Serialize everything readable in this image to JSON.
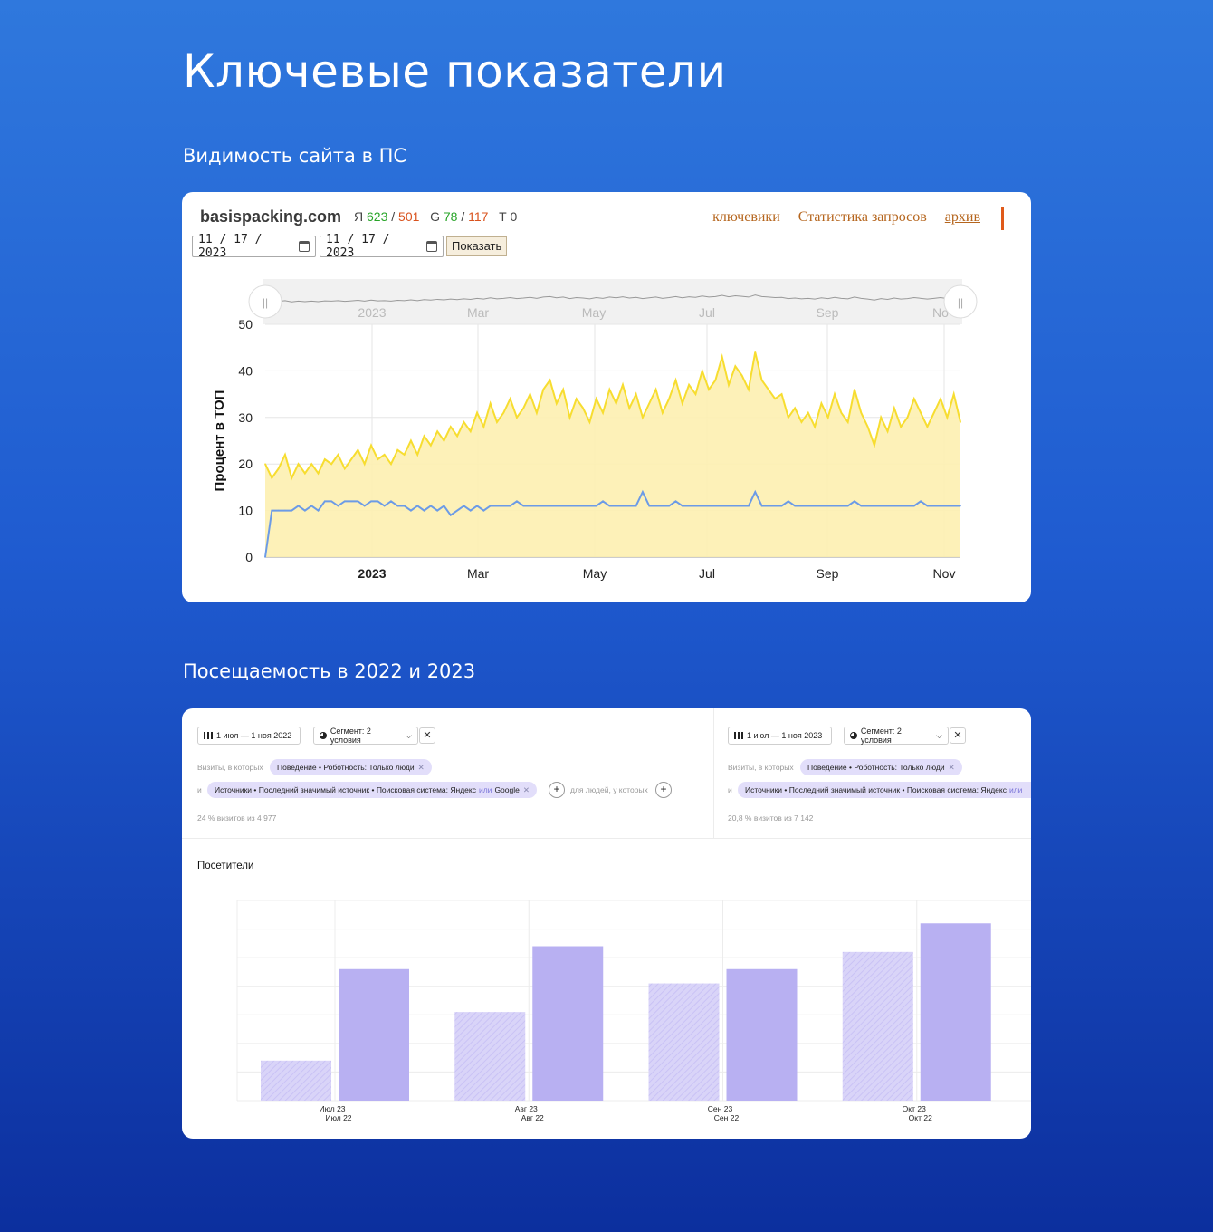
{
  "page": {
    "title": "Ключевые показатели",
    "section1_title": "Видимость сайта в ПС",
    "section2_title": "Посещаемость в 2022 и 2023"
  },
  "visibility": {
    "domain": "basispacking.com",
    "yandex_label": "Я",
    "yandex_green": "623",
    "yandex_red": "501",
    "google_label": "G",
    "google_green": "78",
    "google_red": "117",
    "t_label": "Т 0",
    "links": [
      "ключевики",
      "Статистика запросов",
      "архив"
    ],
    "date_from": "11 / 17 / 2023",
    "date_to": "11 / 17 / 2023",
    "show_button": "Показать",
    "navigator_labels": [
      "2023",
      "Mar",
      "May",
      "Jul",
      "Sep",
      "No"
    ],
    "colors": {
      "yandex": "#f7dd30",
      "yandex_fill": "#fdf0b0",
      "google": "#6c9be6",
      "link": "#b5651d"
    }
  },
  "traffic": {
    "left": {
      "date_range": "1 июл — 1 ноя 2022",
      "segment": "Сегмент: 2 условия",
      "visits_prefix": "Визиты, в которых",
      "behavior_tag": "Поведение • Роботность: Только люди",
      "and_label": "и",
      "source_tag_main": "Источники • Последний значимый источник • Поисковая система: Яндекс",
      "source_tag_or": "или",
      "source_tag_tail": "Google",
      "for_people": "для людей, у которых",
      "share": "24 % визитов из 4 977"
    },
    "right": {
      "date_range": "1 июл — 1 ноя 2023",
      "segment": "Сегмент: 2 условия",
      "visits_prefix": "Визиты, в которых",
      "behavior_tag": "Поведение • Роботность: Только люди",
      "and_label": "и",
      "source_tag_main": "Источники • Последний значимый источник • Поисковая система: Яндекс",
      "source_tag_or": "или",
      "share": "20,8 % визитов из 7 142"
    },
    "visitors_label": "Посетители",
    "colors": {
      "bar": "#b8b0f2",
      "hatch": "#c9c2f5"
    }
  },
  "chart_data": [
    {
      "type": "area",
      "ylabel": "Процент в ТОП",
      "ylim": [
        0,
        50
      ],
      "yticks": [
        0,
        10,
        20,
        30,
        40,
        50
      ],
      "xticks": [
        "2023",
        "Mar",
        "May",
        "Jul",
        "Sep",
        "Nov"
      ],
      "grid": true,
      "series": [
        {
          "values": [
            20,
            17,
            19,
            22,
            17,
            20,
            18,
            20,
            18,
            21,
            20,
            22,
            19,
            21,
            23,
            20,
            24,
            21,
            22,
            20,
            23,
            22,
            25,
            22,
            26,
            24,
            27,
            25,
            28,
            26,
            29,
            27,
            31,
            28,
            33,
            29,
            31,
            34,
            30,
            32,
            35,
            31,
            36,
            38,
            33,
            36,
            30,
            34,
            32,
            29,
            34,
            31,
            36,
            33,
            37,
            32,
            35,
            30,
            33,
            36,
            31,
            34,
            38,
            33,
            37,
            35,
            40,
            36,
            38,
            43,
            37,
            41,
            39,
            36,
            44,
            38,
            36,
            34,
            35,
            30,
            32,
            29,
            31,
            28,
            33,
            30,
            35,
            31,
            29,
            36,
            31,
            28,
            24,
            30,
            27,
            32,
            28,
            30,
            34,
            31,
            28,
            31,
            34,
            30,
            35,
            29
          ]
        },
        {
          "values": [
            0,
            10,
            10,
            10,
            10,
            11,
            10,
            11,
            10,
            12,
            12,
            11,
            12,
            12,
            12,
            11,
            12,
            12,
            11,
            12,
            11,
            11,
            10,
            11,
            10,
            11,
            10,
            11,
            9,
            10,
            11,
            10,
            11,
            10,
            11,
            11,
            11,
            11,
            12,
            11,
            11,
            11,
            11,
            11,
            11,
            11,
            11,
            11,
            11,
            11,
            11,
            12,
            11,
            11,
            11,
            11,
            11,
            14,
            11,
            11,
            11,
            11,
            12,
            11,
            11,
            11,
            11,
            11,
            11,
            11,
            11,
            11,
            11,
            11,
            14,
            11,
            11,
            11,
            11,
            12,
            11,
            11,
            11,
            11,
            11,
            11,
            11,
            11,
            11,
            12,
            11,
            11,
            11,
            11,
            11,
            11,
            11,
            11,
            11,
            12,
            11,
            11,
            11,
            11,
            11,
            11
          ]
        }
      ]
    },
    {
      "type": "bar",
      "title": "Посетители",
      "categories": [
        "Июл 23 / Июл 22",
        "Авг 23 / Авг 22",
        "Сен 23 / Сен 22",
        "Окт 23 / Окт 22"
      ],
      "category_top": [
        "Июл 23",
        "Авг 23",
        "Сен 23",
        "Окт 23"
      ],
      "category_bottom": [
        "Июл 22",
        "Авг 22",
        "Сен 22",
        "Окт 22"
      ],
      "ylim": [
        0,
        7
      ],
      "series": [
        {
          "values": [
            1.4,
            3.1,
            4.1,
            5.2
          ]
        },
        {
          "values": [
            4.6,
            5.4,
            4.6,
            6.2
          ]
        }
      ]
    }
  ]
}
